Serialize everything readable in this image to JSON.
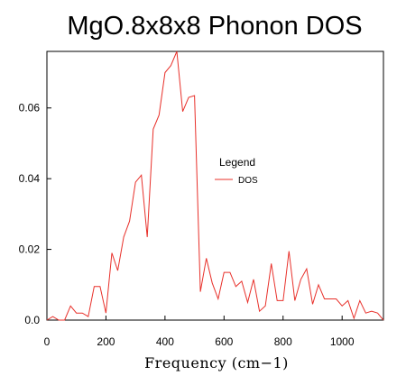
{
  "chart_data": {
    "type": "line",
    "title": "MgO.8x8x8 Phonon DOS",
    "xlabel": "Frequency (cm−1)",
    "ylabel": "",
    "xlim": [
      0,
      1140
    ],
    "ylim": [
      0,
      0.076
    ],
    "xticks": [
      0,
      200,
      400,
      600,
      800,
      1000
    ],
    "yticks": [
      0.0,
      0.02,
      0.04,
      0.06
    ],
    "xtick_labels": [
      "0",
      "200",
      "400",
      "600",
      "800",
      "1000"
    ],
    "ytick_labels": [
      "0.0",
      "0.02",
      "0.04",
      "0.06"
    ],
    "grid": false,
    "legend": {
      "title": "Legend",
      "placement": "right"
    },
    "series": [
      {
        "name": "DOS",
        "color": "#e8302a",
        "x": [
          0,
          20,
          40,
          60,
          80,
          100,
          120,
          140,
          160,
          180,
          200,
          220,
          240,
          260,
          280,
          300,
          320,
          340,
          360,
          380,
          400,
          420,
          440,
          460,
          480,
          500,
          520,
          540,
          560,
          580,
          600,
          620,
          640,
          660,
          680,
          700,
          720,
          740,
          760,
          780,
          800,
          820,
          840,
          860,
          880,
          900,
          920,
          940,
          960,
          980,
          1000,
          1020,
          1040,
          1060,
          1080,
          1100,
          1120,
          1140
        ],
        "values": [
          0.0,
          0.001,
          0.0,
          0.0,
          0.004,
          0.002,
          0.002,
          0.001,
          0.0095,
          0.0095,
          0.002,
          0.019,
          0.014,
          0.0235,
          0.028,
          0.039,
          0.041,
          0.0235,
          0.054,
          0.058,
          0.07,
          0.072,
          0.076,
          0.059,
          0.063,
          0.0635,
          0.008,
          0.0175,
          0.0105,
          0.006,
          0.0135,
          0.0135,
          0.0095,
          0.011,
          0.005,
          0.0115,
          0.0025,
          0.004,
          0.016,
          0.0055,
          0.0055,
          0.0195,
          0.0055,
          0.0115,
          0.0145,
          0.0045,
          0.01,
          0.006,
          0.006,
          0.006,
          0.004,
          0.0055,
          0.0005,
          0.0055,
          0.002,
          0.0025,
          0.002,
          0.0
        ]
      }
    ]
  }
}
